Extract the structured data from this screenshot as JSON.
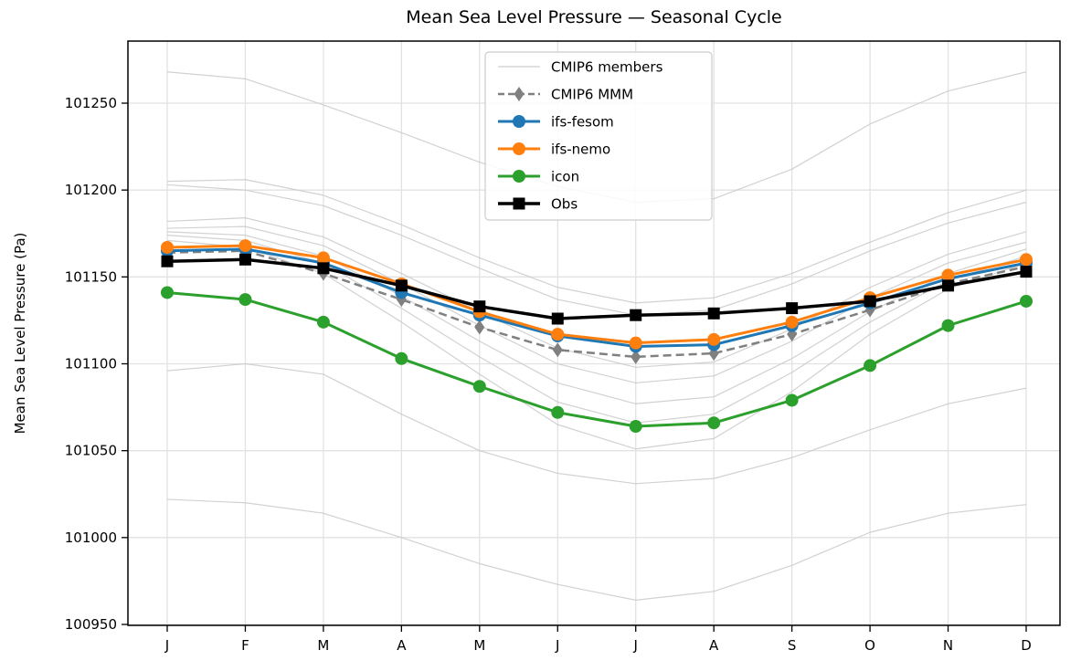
{
  "chart": {
    "title": "Mean Sea Level Pressure — Seasonal Cycle",
    "ylabel": "Mean Sea Level Pressure (Pa)"
  },
  "chart_data": {
    "type": "line",
    "title": "Mean Sea Level Pressure — Seasonal Cycle",
    "xlabel": "",
    "ylabel": "Mean Sea Level Pressure (Pa)",
    "categories": [
      "J",
      "F",
      "M",
      "A",
      "M",
      "J",
      "J",
      "A",
      "S",
      "O",
      "N",
      "D"
    ],
    "yticks": [
      100950,
      101000,
      101050,
      101100,
      101150,
      101200,
      101250
    ],
    "ylim": [
      100949,
      101286
    ],
    "grid": true,
    "legend_position": "upper center",
    "series": [
      {
        "name": "CMIP6 members",
        "color": "#c9c9c9",
        "style": "solid",
        "marker": "none",
        "width": 1.2,
        "values_list": [
          [
            101268,
            101264,
            101249,
            101233,
            101216,
            101202,
            101193,
            101195,
            101212,
            101238,
            101257,
            101268
          ],
          [
            101205,
            101206,
            101197,
            101180,
            101161,
            101144,
            101135,
            101138,
            101152,
            101170,
            101187,
            101200
          ],
          [
            101203,
            101200,
            101191,
            101174,
            101155,
            101137,
            101128,
            101131,
            101146,
            101165,
            101181,
            101193
          ],
          [
            101182,
            101184,
            101173,
            101152,
            101130,
            101109,
            101098,
            101101,
            101120,
            101144,
            101163,
            101176
          ],
          [
            101178,
            101179,
            101168,
            101146,
            101122,
            101100,
            101089,
            101093,
            101113,
            101138,
            101158,
            101170
          ],
          [
            101176,
            101174,
            101162,
            101139,
            101113,
            101089,
            101077,
            101081,
            101103,
            101130,
            101152,
            101166
          ],
          [
            101174,
            101171,
            101158,
            101132,
            101104,
            101078,
            101066,
            101071,
            101095,
            101124,
            101148,
            101162
          ],
          [
            101171,
            101167,
            101152,
            101124,
            101094,
            101065,
            101051,
            101057,
            101084,
            101117,
            101143,
            101158
          ],
          [
            101096,
            101100,
            101094,
            101071,
            101050,
            101037,
            101031,
            101034,
            101046,
            101062,
            101077,
            101086
          ],
          [
            101022,
            101020,
            101014,
            101000,
            100985,
            100973,
            100964,
            100969,
            100984,
            101003,
            101014,
            101019
          ]
        ]
      },
      {
        "name": "CMIP6 MMM",
        "color": "#808080",
        "style": "dashed",
        "marker": "diamond",
        "width": 2.5,
        "values": [
          101164,
          101165,
          101152,
          101137,
          101121,
          101108,
          101104,
          101106,
          101117,
          101131,
          101146,
          101156
        ]
      },
      {
        "name": "ifs-fesom",
        "color": "#1f77b4",
        "style": "solid",
        "marker": "circle",
        "width": 3,
        "values": [
          101165,
          101166,
          101158,
          101141,
          101128,
          101116,
          101110,
          101111,
          101122,
          101135,
          101149,
          101158
        ]
      },
      {
        "name": "ifs-nemo",
        "color": "#ff7f0e",
        "style": "solid",
        "marker": "circle",
        "width": 3,
        "values": [
          101167,
          101168,
          101161,
          101146,
          101130,
          101117,
          101112,
          101114,
          101124,
          101138,
          101151,
          101160
        ]
      },
      {
        "name": "icon",
        "color": "#2ca02c",
        "style": "solid",
        "marker": "circle",
        "width": 3,
        "values": [
          101141,
          101137,
          101124,
          101103,
          101087,
          101072,
          101064,
          101066,
          101079,
          101099,
          101122,
          101136
        ]
      },
      {
        "name": "Obs",
        "color": "#000000",
        "style": "solid",
        "marker": "square",
        "width": 3.5,
        "values": [
          101159,
          101160,
          101155,
          101145,
          101133,
          101126,
          101128,
          101129,
          101132,
          101136,
          101145,
          101153
        ]
      }
    ]
  }
}
